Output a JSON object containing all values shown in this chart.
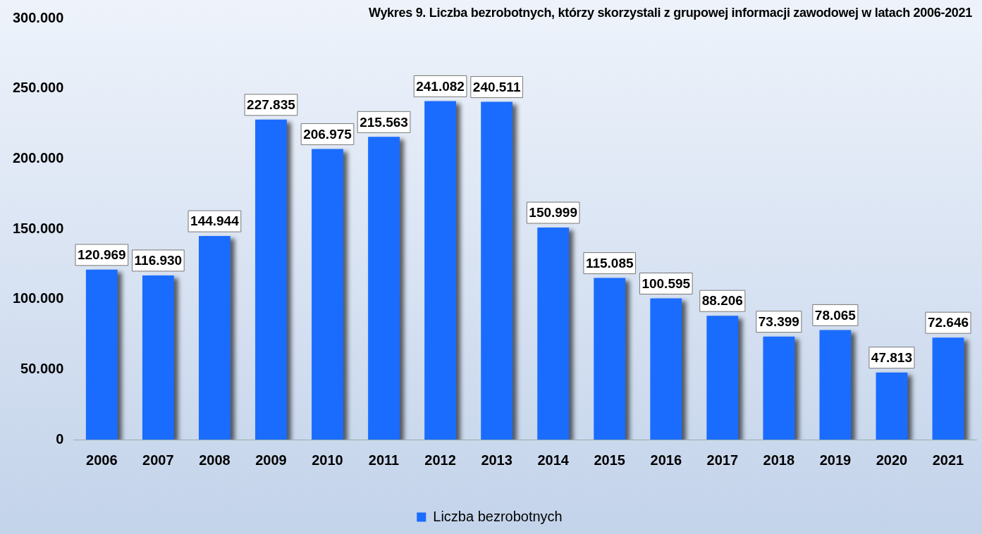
{
  "chart_data": {
    "type": "bar",
    "title": "Wykres 9. Liczba bezrobotnych, którzy skorzystali z grupowej informacji zawodowej w latach 2006-2021",
    "categories": [
      "2006",
      "2007",
      "2008",
      "2009",
      "2010",
      "2011",
      "2012",
      "2013",
      "2014",
      "2015",
      "2016",
      "2017",
      "2018",
      "2019",
      "2020",
      "2021"
    ],
    "series": [
      {
        "name": "Liczba bezrobotnych",
        "color": "#1a6cff",
        "values": [
          120969,
          116930,
          144944,
          227835,
          206975,
          215563,
          241082,
          240511,
          150999,
          115085,
          100595,
          88206,
          73399,
          78065,
          47813,
          72646
        ],
        "value_labels": [
          "120.969",
          "116.930",
          "144.944",
          "227.835",
          "206.975",
          "215.563",
          "241.082",
          "240.511",
          "150.999",
          "115.085",
          "100.595",
          "88.206",
          "73.399",
          "78.065",
          "47.813",
          "72.646"
        ]
      }
    ],
    "ylim": [
      0,
      300000
    ],
    "yticks": [
      {
        "value": 0,
        "label": "0"
      },
      {
        "value": 50000,
        "label": "50.000"
      },
      {
        "value": 100000,
        "label": "100.000"
      },
      {
        "value": 150000,
        "label": "150.000"
      },
      {
        "value": 200000,
        "label": "200.000"
      },
      {
        "value": 250000,
        "label": "250.000"
      },
      {
        "value": 300000,
        "label": "300.000"
      }
    ],
    "grid": false,
    "legend": "bottom"
  }
}
